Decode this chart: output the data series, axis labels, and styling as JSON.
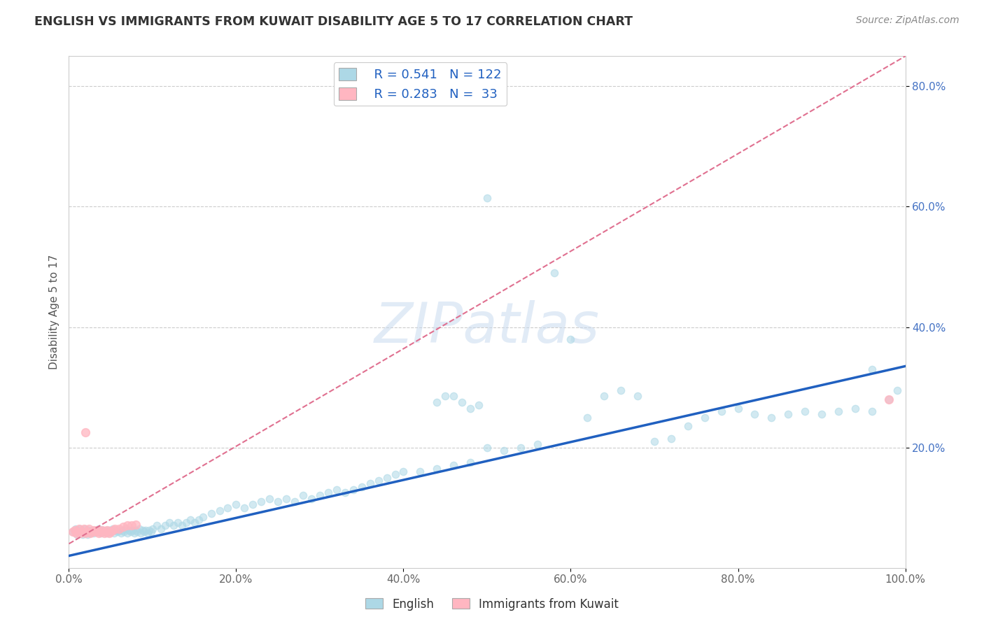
{
  "title": "ENGLISH VS IMMIGRANTS FROM KUWAIT DISABILITY AGE 5 TO 17 CORRELATION CHART",
  "source": "Source: ZipAtlas.com",
  "ylabel": "Disability Age 5 to 17",
  "xlim": [
    0.0,
    1.0
  ],
  "ylim": [
    0.0,
    0.85
  ],
  "xtick_labels": [
    "0.0%",
    "20.0%",
    "40.0%",
    "60.0%",
    "80.0%",
    "100.0%"
  ],
  "xtick_vals": [
    0.0,
    0.2,
    0.4,
    0.6,
    0.8,
    1.0
  ],
  "ytick_labels": [
    "80.0%",
    "60.0%",
    "40.0%",
    "20.0%"
  ],
  "ytick_vals": [
    0.8,
    0.6,
    0.4,
    0.2
  ],
  "legend_r1": "R = 0.541",
  "legend_n1": "N = 122",
  "legend_r2": "R = 0.283",
  "legend_n2": "N =  33",
  "legend_label1": "English",
  "legend_label2": "Immigrants from Kuwait",
  "color_english": "#ADD8E6",
  "color_kuwait": "#FFB6C1",
  "trendline_english_color": "#2060C0",
  "trendline_kuwait_color": "#E07090",
  "watermark": "ZIPatlas",
  "english_x": [
    0.005,
    0.008,
    0.01,
    0.012,
    0.014,
    0.016,
    0.018,
    0.02,
    0.022,
    0.024,
    0.026,
    0.028,
    0.03,
    0.032,
    0.034,
    0.036,
    0.038,
    0.04,
    0.042,
    0.044,
    0.046,
    0.048,
    0.05,
    0.052,
    0.054,
    0.056,
    0.058,
    0.06,
    0.062,
    0.064,
    0.066,
    0.068,
    0.07,
    0.072,
    0.074,
    0.076,
    0.078,
    0.08,
    0.082,
    0.084,
    0.086,
    0.088,
    0.09,
    0.092,
    0.094,
    0.096,
    0.098,
    0.1,
    0.105,
    0.11,
    0.115,
    0.12,
    0.125,
    0.13,
    0.135,
    0.14,
    0.145,
    0.15,
    0.155,
    0.16,
    0.17,
    0.18,
    0.19,
    0.2,
    0.21,
    0.22,
    0.23,
    0.24,
    0.25,
    0.26,
    0.27,
    0.28,
    0.29,
    0.3,
    0.31,
    0.32,
    0.33,
    0.34,
    0.35,
    0.36,
    0.37,
    0.38,
    0.39,
    0.4,
    0.42,
    0.44,
    0.46,
    0.48,
    0.5,
    0.52,
    0.54,
    0.56,
    0.58,
    0.6,
    0.62,
    0.64,
    0.66,
    0.68,
    0.7,
    0.72,
    0.74,
    0.76,
    0.78,
    0.8,
    0.82,
    0.84,
    0.86,
    0.88,
    0.9,
    0.92,
    0.94,
    0.96,
    0.98,
    0.99,
    0.44,
    0.45,
    0.46,
    0.47,
    0.48,
    0.49,
    0.5,
    0.96
  ],
  "english_y": [
    0.06,
    0.065,
    0.055,
    0.06,
    0.065,
    0.055,
    0.06,
    0.065,
    0.055,
    0.062,
    0.058,
    0.063,
    0.058,
    0.062,
    0.06,
    0.065,
    0.058,
    0.062,
    0.06,
    0.063,
    0.058,
    0.062,
    0.06,
    0.065,
    0.058,
    0.062,
    0.06,
    0.063,
    0.058,
    0.062,
    0.06,
    0.065,
    0.058,
    0.062,
    0.06,
    0.063,
    0.058,
    0.062,
    0.06,
    0.065,
    0.058,
    0.062,
    0.06,
    0.063,
    0.058,
    0.062,
    0.06,
    0.065,
    0.07,
    0.065,
    0.07,
    0.075,
    0.07,
    0.075,
    0.07,
    0.075,
    0.08,
    0.075,
    0.08,
    0.085,
    0.09,
    0.095,
    0.1,
    0.105,
    0.1,
    0.105,
    0.11,
    0.115,
    0.11,
    0.115,
    0.11,
    0.12,
    0.115,
    0.12,
    0.125,
    0.13,
    0.125,
    0.13,
    0.135,
    0.14,
    0.145,
    0.15,
    0.155,
    0.16,
    0.16,
    0.165,
    0.17,
    0.175,
    0.2,
    0.195,
    0.2,
    0.205,
    0.49,
    0.38,
    0.25,
    0.285,
    0.295,
    0.285,
    0.21,
    0.215,
    0.235,
    0.25,
    0.26,
    0.265,
    0.255,
    0.25,
    0.255,
    0.26,
    0.255,
    0.26,
    0.265,
    0.26,
    0.28,
    0.295,
    0.275,
    0.285,
    0.285,
    0.275,
    0.265,
    0.27,
    0.615,
    0.33
  ],
  "kuwait_x": [
    0.005,
    0.007,
    0.009,
    0.01,
    0.012,
    0.014,
    0.016,
    0.018,
    0.02,
    0.022,
    0.024,
    0.026,
    0.028,
    0.03,
    0.032,
    0.034,
    0.036,
    0.038,
    0.04,
    0.042,
    0.044,
    0.046,
    0.048,
    0.05,
    0.052,
    0.055,
    0.06,
    0.065,
    0.07,
    0.075,
    0.08,
    0.02,
    0.98
  ],
  "kuwait_y": [
    0.06,
    0.062,
    0.058,
    0.06,
    0.065,
    0.058,
    0.06,
    0.065,
    0.058,
    0.06,
    0.065,
    0.058,
    0.06,
    0.062,
    0.06,
    0.062,
    0.058,
    0.06,
    0.062,
    0.058,
    0.06,
    0.062,
    0.058,
    0.06,
    0.062,
    0.065,
    0.065,
    0.068,
    0.07,
    0.07,
    0.072,
    0.225,
    0.28
  ],
  "trendline_eng_x0": 0.0,
  "trendline_eng_y0": 0.02,
  "trendline_eng_x1": 1.0,
  "trendline_eng_y1": 0.335,
  "trendline_kuw_x0": 0.0,
  "trendline_kuw_y0": 0.04,
  "trendline_kuw_x1": 1.0,
  "trendline_kuw_y1": 0.85
}
